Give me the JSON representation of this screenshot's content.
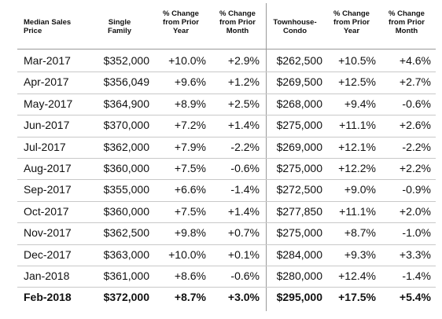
{
  "table": {
    "header": [
      [
        "Median Sales",
        "Price"
      ],
      [
        "Single",
        "Family"
      ],
      [
        "% Change",
        "from Prior",
        "Year"
      ],
      [
        "% Change",
        "from Prior",
        "Month"
      ],
      [
        "Townhouse-",
        "Condo"
      ],
      [
        "% Change",
        "from Prior",
        "Year"
      ],
      [
        "% Change",
        "from Prior",
        "Month"
      ]
    ],
    "rows": [
      [
        "Mar-2017",
        "$352,000",
        "+10.0%",
        "+2.9%",
        "$262,500",
        "+10.5%",
        "+4.6%"
      ],
      [
        "Apr-2017",
        "$356,049",
        "+9.6%",
        "+1.2%",
        "$269,500",
        "+12.5%",
        "+2.7%"
      ],
      [
        "May-2017",
        "$364,900",
        "+8.9%",
        "+2.5%",
        "$268,000",
        "+9.4%",
        "-0.6%"
      ],
      [
        "Jun-2017",
        "$370,000",
        "+7.2%",
        "+1.4%",
        "$275,000",
        "+11.1%",
        "+2.6%"
      ],
      [
        "Jul-2017",
        "$362,000",
        "+7.9%",
        "-2.2%",
        "$269,000",
        "+12.1%",
        "-2.2%"
      ],
      [
        "Aug-2017",
        "$360,000",
        "+7.5%",
        "-0.6%",
        "$275,000",
        "+12.2%",
        "+2.2%"
      ],
      [
        "Sep-2017",
        "$355,000",
        "+6.6%",
        "-1.4%",
        "$272,500",
        "+9.0%",
        "-0.9%"
      ],
      [
        "Oct-2017",
        "$360,000",
        "+7.5%",
        "+1.4%",
        "$277,850",
        "+11.1%",
        "+2.0%"
      ],
      [
        "Nov-2017",
        "$362,500",
        "+9.8%",
        "+0.7%",
        "$275,000",
        "+8.7%",
        "-1.0%"
      ],
      [
        "Dec-2017",
        "$363,000",
        "+10.0%",
        "+0.1%",
        "$284,000",
        "+9.3%",
        "+3.3%"
      ],
      [
        "Jan-2018",
        "$361,000",
        "+8.6%",
        "-0.6%",
        "$280,000",
        "+12.4%",
        "-1.4%"
      ],
      [
        "Feb-2018",
        "$372,000",
        "+8.7%",
        "+3.0%",
        "$295,000",
        "+17.5%",
        "+5.4%"
      ]
    ]
  }
}
